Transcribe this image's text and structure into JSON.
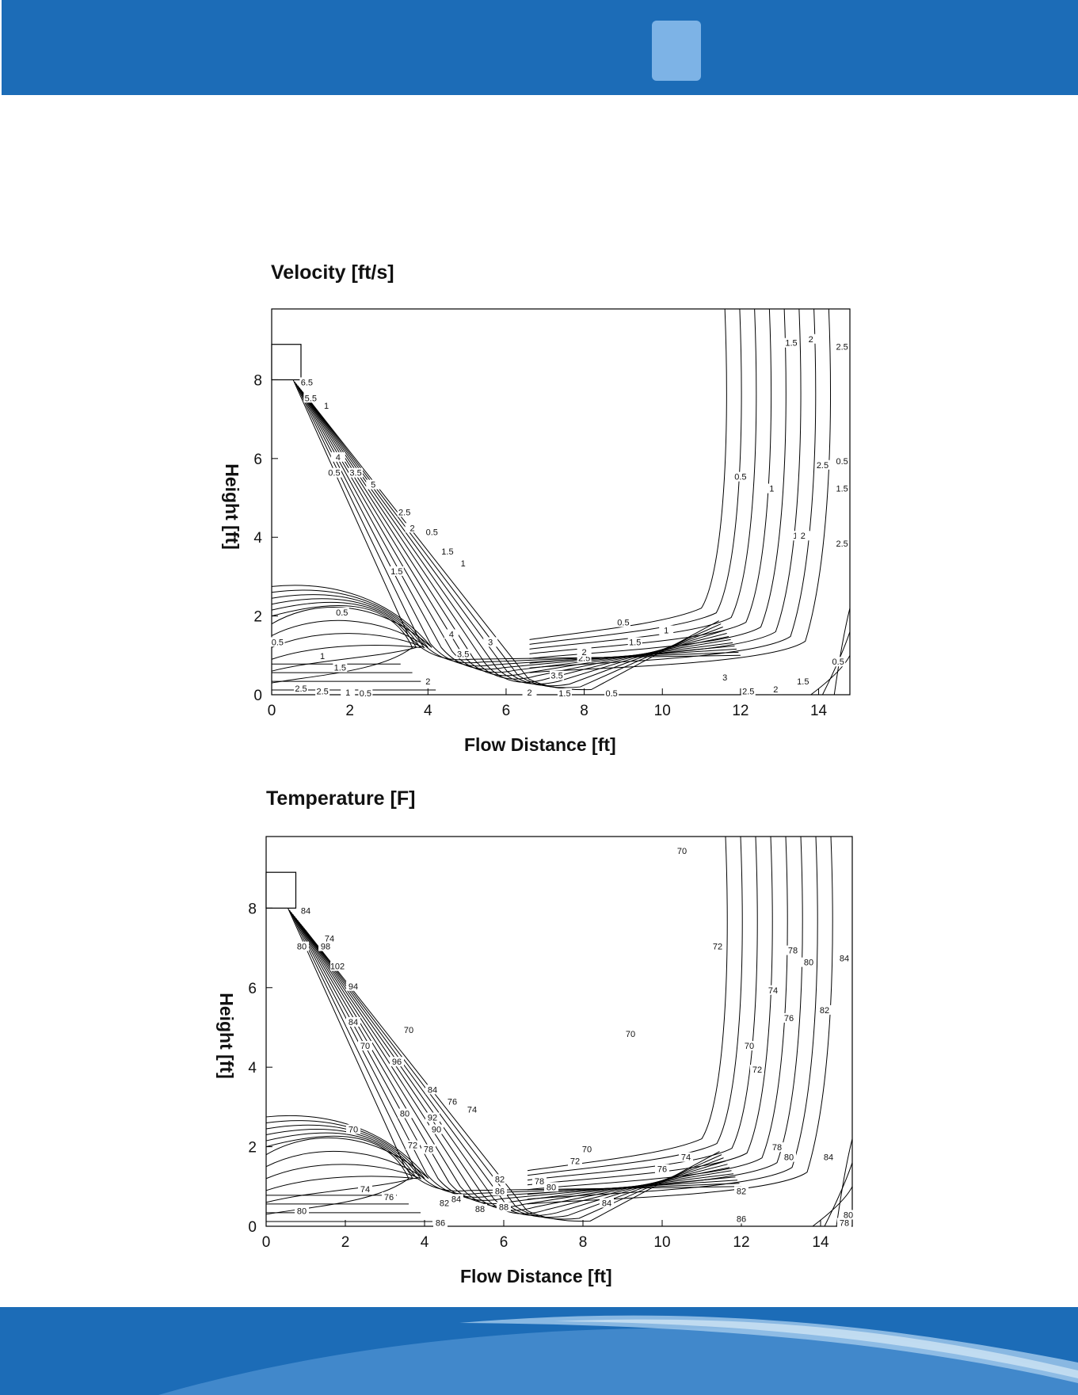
{
  "header": {
    "accent": "#1c6cb7",
    "tab_color": "#7db3e6"
  },
  "footer": {
    "band": "#1c6cb7",
    "swoosh": "#9cc6ea"
  },
  "chart_data": [
    {
      "type": "contour",
      "title": "Velocity [ft/s]",
      "xlabel": "Flow Distance [ft]",
      "ylabel": "Height [ft]",
      "xlim": [
        0,
        14.8
      ],
      "ylim": [
        0,
        9.8
      ],
      "xticks": [
        "0",
        "2",
        "4",
        "6",
        "8",
        "10",
        "12",
        "14"
      ],
      "yticks": [
        "0",
        "2",
        "4",
        "6",
        "8"
      ],
      "grid": false,
      "levels": [
        "0.5",
        "1",
        "1.5",
        "2",
        "2.5",
        "3",
        "3.5",
        "4",
        "4.5",
        "5",
        "5.5",
        "6",
        "6.5"
      ],
      "contour_labels": [
        {
          "text": "0.5",
          "x": 1.8,
          "y": 2.05
        },
        {
          "text": "0.5",
          "x": 0.15,
          "y": 1.3
        },
        {
          "text": "1",
          "x": 1.3,
          "y": 0.95
        },
        {
          "text": "1.5",
          "x": 1.75,
          "y": 0.65
        },
        {
          "text": "2.5",
          "x": 0.75,
          "y": 0.12
        },
        {
          "text": "2.5",
          "x": 1.3,
          "y": 0.05
        },
        {
          "text": "1",
          "x": 1.95,
          "y": 0.02
        },
        {
          "text": "0.5",
          "x": 2.4,
          "y": 0.0
        },
        {
          "text": "2",
          "x": 4.0,
          "y": 0.3
        },
        {
          "text": "4",
          "x": 4.6,
          "y": 1.5
        },
        {
          "text": "3.5",
          "x": 4.9,
          "y": 1.0
        },
        {
          "text": "3",
          "x": 5.6,
          "y": 1.3
        },
        {
          "text": "2.5",
          "x": 8.0,
          "y": 0.9
        },
        {
          "text": "3.5",
          "x": 7.3,
          "y": 0.45
        },
        {
          "text": "2",
          "x": 6.6,
          "y": 0.02
        },
        {
          "text": "1.5",
          "x": 7.5,
          "y": 0.0
        },
        {
          "text": "0.5",
          "x": 8.7,
          "y": 0.0
        },
        {
          "text": "0.5",
          "x": 9.0,
          "y": 1.8
        },
        {
          "text": "1",
          "x": 10.1,
          "y": 1.6
        },
        {
          "text": "1.5",
          "x": 9.3,
          "y": 1.3
        },
        {
          "text": "2",
          "x": 8.0,
          "y": 1.05
        },
        {
          "text": "3",
          "x": 11.6,
          "y": 0.4
        },
        {
          "text": "2.5",
          "x": 12.2,
          "y": 0.05
        },
        {
          "text": "2",
          "x": 12.9,
          "y": 0.1
        },
        {
          "text": "1.5",
          "x": 13.6,
          "y": 0.3
        },
        {
          "text": "0.5",
          "x": 14.5,
          "y": 0.8
        },
        {
          "text": "0.5",
          "x": 12.0,
          "y": 5.5
        },
        {
          "text": "1",
          "x": 12.8,
          "y": 5.2
        },
        {
          "text": "1.5",
          "x": 13.5,
          "y": 4.0
        },
        {
          "text": "2",
          "x": 13.6,
          "y": 4.0
        },
        {
          "text": "2.5",
          "x": 14.1,
          "y": 5.8
        },
        {
          "text": "1.5",
          "x": 13.3,
          "y": 8.9
        },
        {
          "text": "2",
          "x": 13.8,
          "y": 9.0
        },
        {
          "text": "2.5",
          "x": 14.6,
          "y": 8.8
        },
        {
          "text": "0.5",
          "x": 14.6,
          "y": 5.9
        },
        {
          "text": "1.5",
          "x": 14.6,
          "y": 5.2
        },
        {
          "text": "2.5",
          "x": 14.6,
          "y": 3.8
        },
        {
          "text": "4",
          "x": 1.7,
          "y": 6.0
        },
        {
          "text": "3.5",
          "x": 2.15,
          "y": 5.6
        },
        {
          "text": "5",
          "x": 2.6,
          "y": 5.3
        },
        {
          "text": "2.5",
          "x": 3.4,
          "y": 4.6
        },
        {
          "text": "2",
          "x": 3.6,
          "y": 4.2
        },
        {
          "text": "1.5",
          "x": 3.2,
          "y": 3.1
        },
        {
          "text": "0.5",
          "x": 4.1,
          "y": 4.1
        },
        {
          "text": "1.5",
          "x": 4.5,
          "y": 3.6
        },
        {
          "text": "1",
          "x": 4.9,
          "y": 3.3
        },
        {
          "text": "0.5",
          "x": 1.6,
          "y": 5.6
        },
        {
          "text": "5.5",
          "x": 1.0,
          "y": 7.5
        },
        {
          "text": "1",
          "x": 1.4,
          "y": 7.3
        },
        {
          "text": "6.5",
          "x": 0.9,
          "y": 7.9
        }
      ]
    },
    {
      "type": "contour",
      "title": "Temperature [F]",
      "xlabel": "Flow Distance [ft]",
      "ylabel": "Height [ft]",
      "xlim": [
        0,
        14.8
      ],
      "ylim": [
        0,
        9.8
      ],
      "xticks": [
        "0",
        "2",
        "4",
        "6",
        "8",
        "10",
        "12",
        "14"
      ],
      "yticks": [
        "0",
        "2",
        "4",
        "6",
        "8"
      ],
      "grid": false,
      "levels": [
        "70",
        "72",
        "74",
        "76",
        "78",
        "80",
        "82",
        "84",
        "86",
        "88",
        "90",
        "92",
        "94",
        "96",
        "98",
        "100",
        "102"
      ],
      "contour_labels": [
        {
          "text": "70",
          "x": 2.2,
          "y": 2.4
        },
        {
          "text": "74",
          "x": 2.5,
          "y": 0.9
        },
        {
          "text": "76",
          "x": 3.1,
          "y": 0.7
        },
        {
          "text": "80",
          "x": 0.9,
          "y": 0.35
        },
        {
          "text": "86",
          "x": 4.4,
          "y": 0.05
        },
        {
          "text": "82",
          "x": 4.5,
          "y": 0.55
        },
        {
          "text": "84",
          "x": 4.8,
          "y": 0.65
        },
        {
          "text": "88",
          "x": 5.4,
          "y": 0.4
        },
        {
          "text": "88",
          "x": 6.0,
          "y": 0.45
        },
        {
          "text": "82",
          "x": 5.9,
          "y": 1.15
        },
        {
          "text": "86",
          "x": 5.9,
          "y": 0.85
        },
        {
          "text": "78",
          "x": 6.9,
          "y": 1.1
        },
        {
          "text": "80",
          "x": 7.2,
          "y": 0.95
        },
        {
          "text": "72",
          "x": 7.8,
          "y": 1.6
        },
        {
          "text": "70",
          "x": 8.1,
          "y": 1.9
        },
        {
          "text": "74",
          "x": 10.6,
          "y": 1.7
        },
        {
          "text": "76",
          "x": 10.0,
          "y": 1.4
        },
        {
          "text": "84",
          "x": 8.6,
          "y": 0.55
        },
        {
          "text": "82",
          "x": 12.0,
          "y": 0.85
        },
        {
          "text": "86",
          "x": 12.0,
          "y": 0.15
        },
        {
          "text": "78",
          "x": 12.9,
          "y": 1.95
        },
        {
          "text": "80",
          "x": 13.2,
          "y": 1.7
        },
        {
          "text": "84",
          "x": 14.2,
          "y": 1.7
        },
        {
          "text": "80",
          "x": 14.7,
          "y": 0.25
        },
        {
          "text": "78",
          "x": 14.6,
          "y": 0.05
        },
        {
          "text": "70",
          "x": 10.5,
          "y": 9.4
        },
        {
          "text": "72",
          "x": 11.4,
          "y": 7.0
        },
        {
          "text": "70",
          "x": 9.2,
          "y": 4.8
        },
        {
          "text": "70",
          "x": 12.2,
          "y": 4.5
        },
        {
          "text": "72",
          "x": 12.4,
          "y": 3.9
        },
        {
          "text": "74",
          "x": 12.8,
          "y": 5.9
        },
        {
          "text": "76",
          "x": 13.2,
          "y": 5.2
        },
        {
          "text": "78",
          "x": 13.3,
          "y": 6.9
        },
        {
          "text": "80",
          "x": 13.7,
          "y": 6.6
        },
        {
          "text": "82",
          "x": 14.1,
          "y": 5.4
        },
        {
          "text": "84",
          "x": 14.6,
          "y": 6.7
        },
        {
          "text": "84",
          "x": 1.0,
          "y": 7.9
        },
        {
          "text": "80",
          "x": 0.9,
          "y": 7.0
        },
        {
          "text": "94",
          "x": 2.2,
          "y": 6.0
        },
        {
          "text": "98",
          "x": 1.5,
          "y": 7.0
        },
        {
          "text": "102",
          "x": 1.8,
          "y": 6.5
        },
        {
          "text": "74",
          "x": 1.6,
          "y": 7.2
        },
        {
          "text": "70",
          "x": 3.6,
          "y": 4.9
        },
        {
          "text": "96",
          "x": 3.3,
          "y": 4.1
        },
        {
          "text": "84",
          "x": 4.2,
          "y": 3.4
        },
        {
          "text": "76",
          "x": 4.7,
          "y": 3.1
        },
        {
          "text": "74",
          "x": 5.2,
          "y": 2.9
        },
        {
          "text": "92",
          "x": 4.2,
          "y": 2.7
        },
        {
          "text": "90",
          "x": 4.3,
          "y": 2.4
        },
        {
          "text": "80",
          "x": 3.5,
          "y": 2.8
        },
        {
          "text": "72",
          "x": 3.7,
          "y": 2.0
        },
        {
          "text": "78",
          "x": 4.1,
          "y": 1.9
        },
        {
          "text": "84",
          "x": 2.2,
          "y": 5.1
        },
        {
          "text": "70",
          "x": 2.5,
          "y": 4.5
        }
      ]
    }
  ]
}
